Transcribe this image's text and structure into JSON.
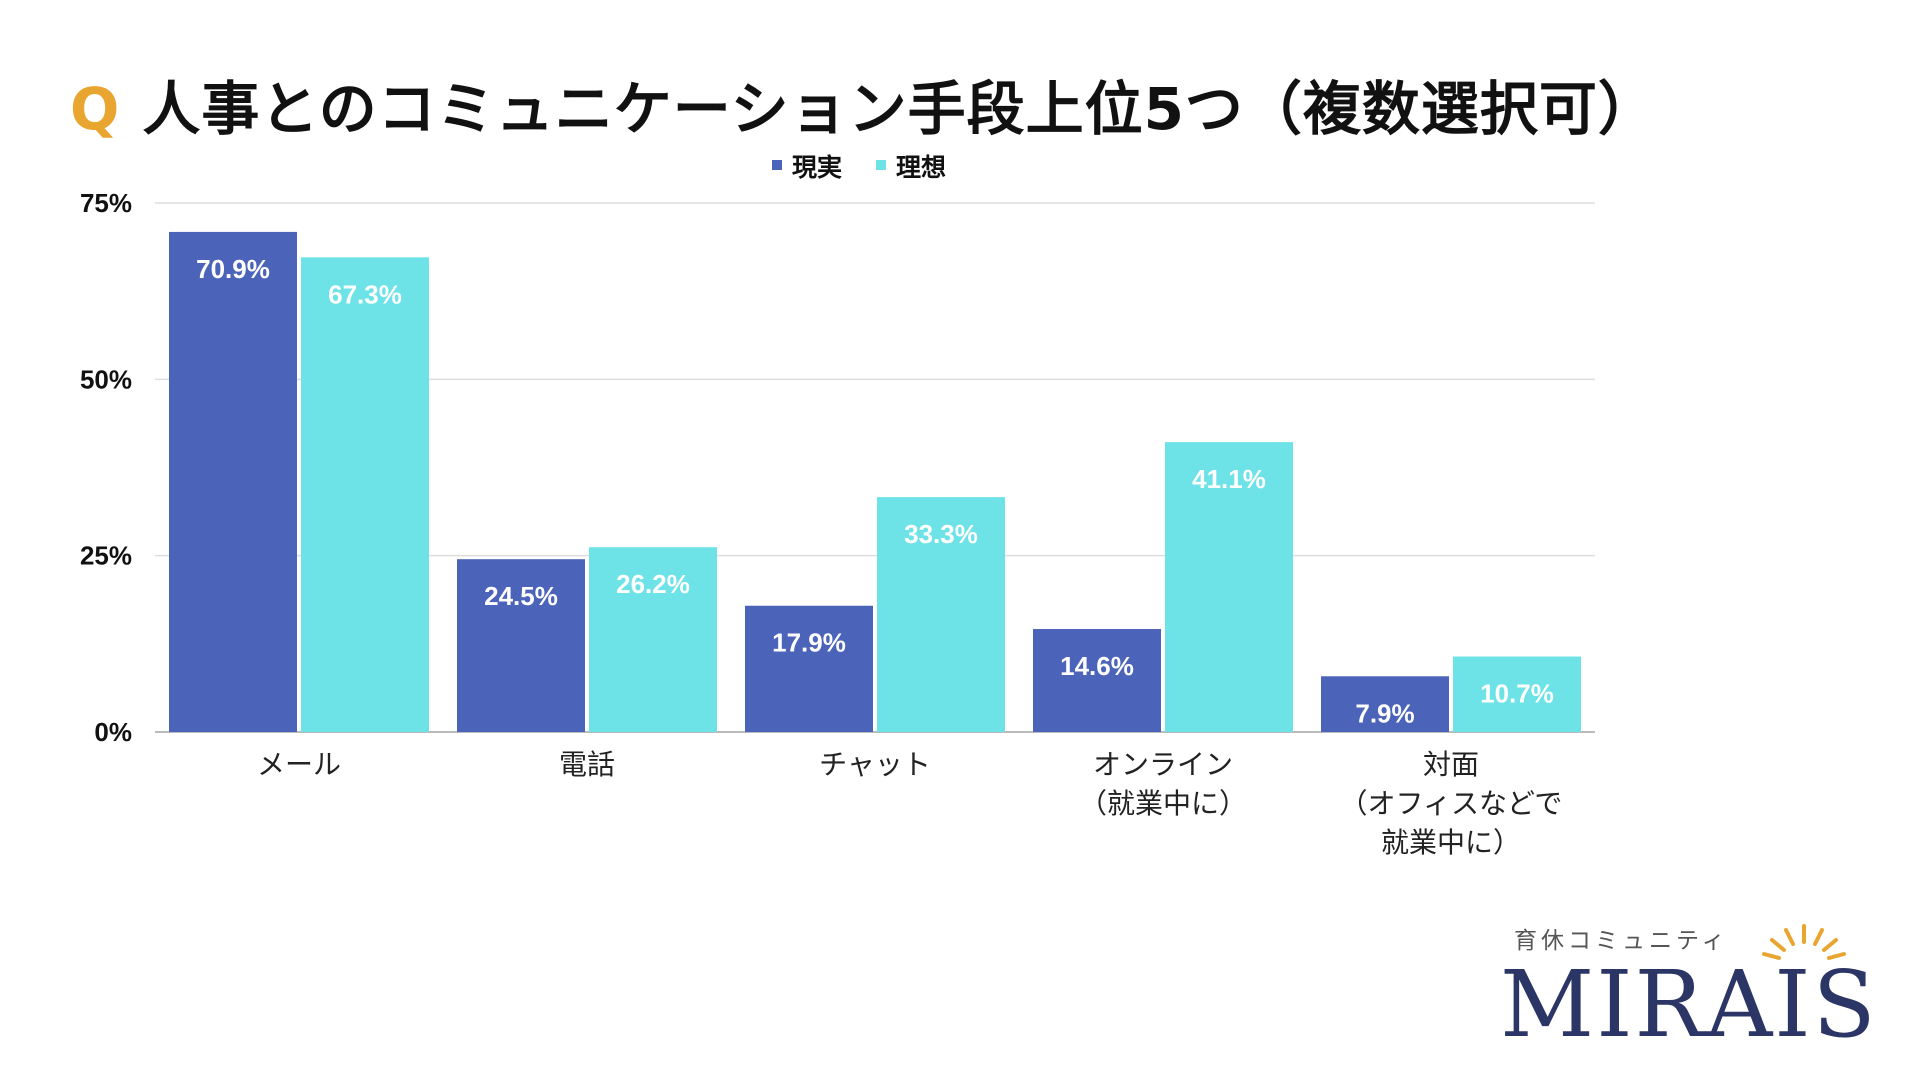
{
  "title": {
    "prefix": "Q",
    "text": "人事とのコミュニケーション手段上位5つ（複数選択可）"
  },
  "brand": {
    "tagline": "育休コミュニティ",
    "name": "MIRAIS"
  },
  "colors": {
    "accent": "#E8A631",
    "series_reality": "#4B63B8",
    "series_ideal": "#6DE3E8",
    "title_text": "#111111",
    "logo_navy": "#2B3566"
  },
  "chart_data": {
    "type": "bar",
    "categories": [
      [
        "メール"
      ],
      [
        "電話"
      ],
      [
        "チャット"
      ],
      [
        "オンライン",
        "（就業中に）"
      ],
      [
        "対面",
        "（オフィスなどで",
        "就業中に）"
      ]
    ],
    "series": [
      {
        "name": "現実",
        "values": [
          70.9,
          24.5,
          17.9,
          14.6,
          7.9
        ],
        "color": "#4B63B8"
      },
      {
        "name": "理想",
        "values": [
          67.3,
          26.2,
          33.3,
          41.1,
          10.7
        ],
        "color": "#6DE3E8"
      }
    ],
    "value_labels": [
      [
        "70.9%",
        "24.5%",
        "17.9%",
        "14.6%",
        "7.9%"
      ],
      [
        "67.3%",
        "26.2%",
        "33.3%",
        "41.1%",
        "10.7%"
      ]
    ],
    "y_ticks": [
      0,
      25,
      50,
      75
    ],
    "y_tick_labels": [
      "0%",
      "25%",
      "50%",
      "75%"
    ],
    "ylim": [
      0,
      75
    ],
    "grid": true,
    "legend": "top-center",
    "xlabel": "",
    "ylabel": ""
  }
}
